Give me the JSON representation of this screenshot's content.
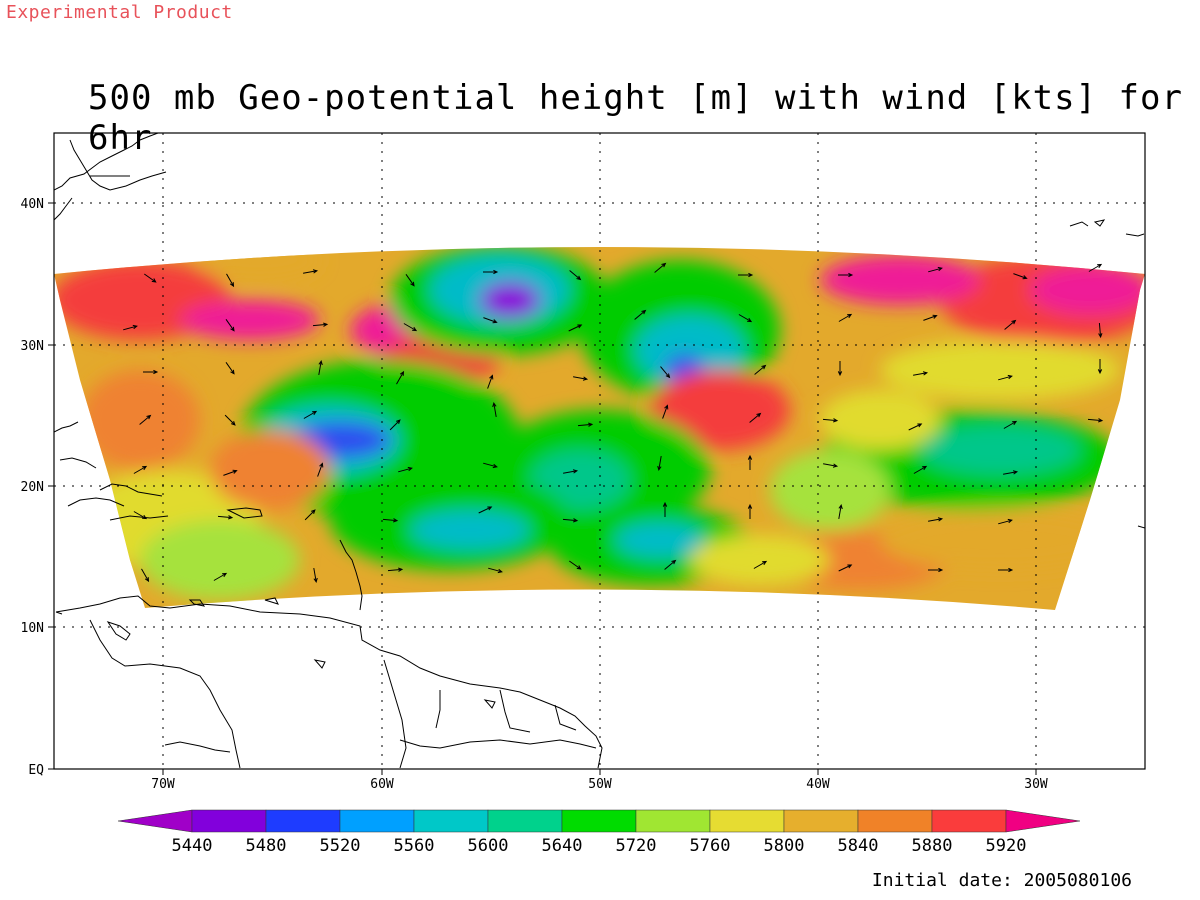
{
  "header": {
    "product_label": "Experimental Product",
    "title": "500 mb Geo-potential height [m] with wind [kts] for 6hr"
  },
  "map": {
    "lat_labels": [
      "40N",
      "30N",
      "20N",
      "10N",
      "EQ"
    ],
    "lon_labels": [
      "70W",
      "60W",
      "50W",
      "40W",
      "30W"
    ],
    "fill_colors": [
      "#ef1a97",
      "#f43e3e",
      "#ef8231",
      "#e3a92c",
      "#e1db2f",
      "#a6e23d",
      "#00cc00",
      "#00c78a",
      "#00bbc8",
      "#0a9ef0",
      "#2f4df0",
      "#8a00da"
    ]
  },
  "legend": {
    "values": [
      "5440",
      "5480",
      "5520",
      "5560",
      "5600",
      "5640",
      "5720",
      "5760",
      "5800",
      "5840",
      "5880",
      "5920"
    ],
    "colors": [
      "#a000c8",
      "#8200dc",
      "#1e3cff",
      "#00a0ff",
      "#00c8c8",
      "#00d28c",
      "#00dc00",
      "#a0e632",
      "#e6dc32",
      "#e6af2d",
      "#f08228",
      "#fa3c3c",
      "#f00082"
    ]
  },
  "footer": {
    "initial_date": "Initial date: 2005080106"
  }
}
